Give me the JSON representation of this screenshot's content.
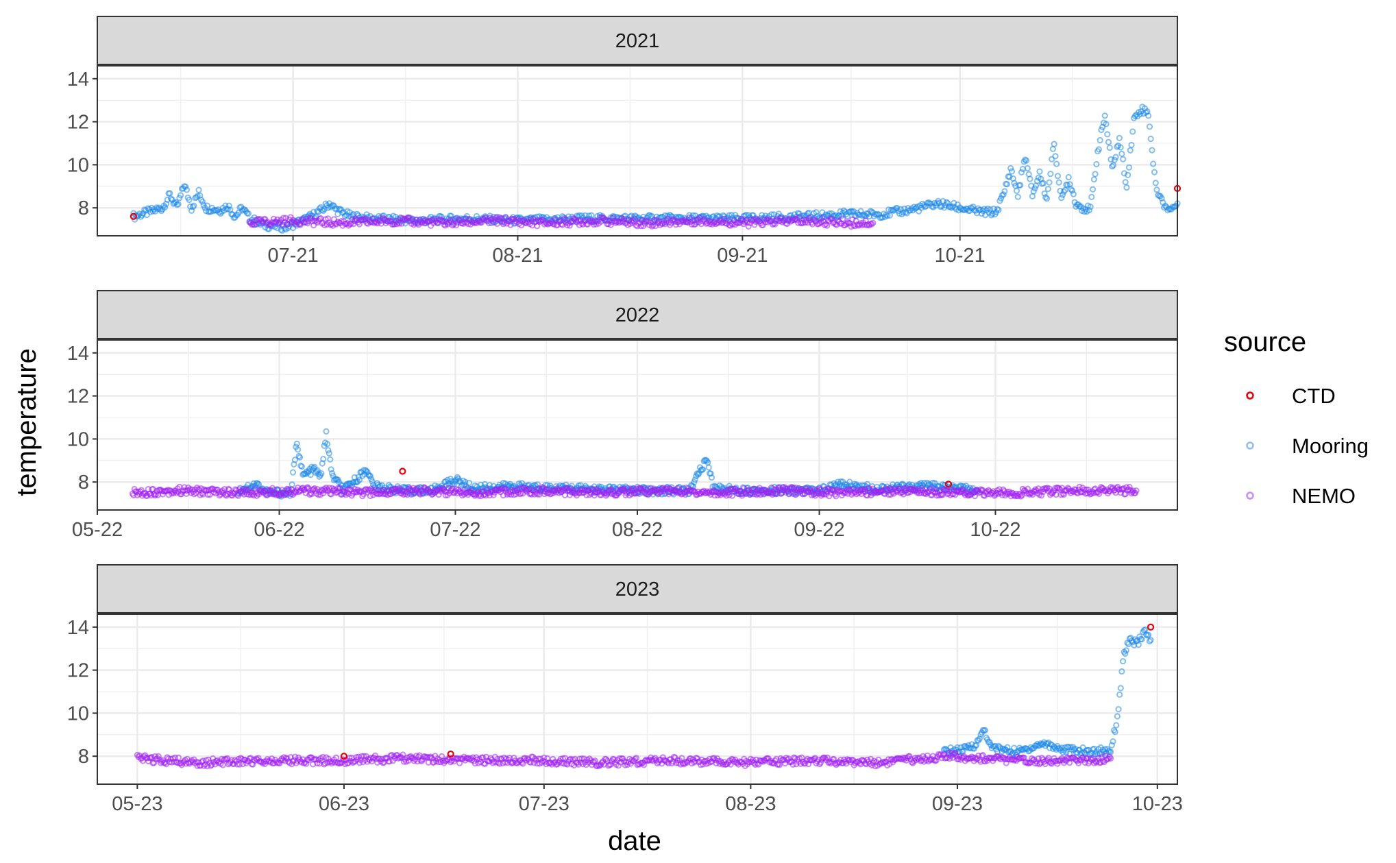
{
  "chart_data": {
    "type": "scatter",
    "xlabel": "date",
    "ylabel": "temperature",
    "legend": {
      "title": "source",
      "position": "right",
      "entries": [
        {
          "name": "CTD",
          "color": "#e8000b"
        },
        {
          "name": "Mooring",
          "color": "#1e88e5"
        },
        {
          "name": "NEMO",
          "color": "#a020f0"
        }
      ]
    },
    "grid": true,
    "panels": [
      {
        "strip": "2021",
        "xlim": [
          "2021-06-04",
          "2021-10-31"
        ],
        "ylim": [
          6.7,
          14.6
        ],
        "yticks": [
          8,
          10,
          12,
          14
        ],
        "xticks": [
          {
            "date": "2021-07-01",
            "label": "07-21"
          },
          {
            "date": "2021-08-01",
            "label": "08-21"
          },
          {
            "date": "2021-09-01",
            "label": "09-21"
          },
          {
            "date": "2021-10-01",
            "label": "10-21"
          }
        ],
        "series": [
          {
            "name": "Mooring",
            "points": [
              [
                "2021-06-09",
                7.6
              ],
              [
                "2021-06-11",
                7.8
              ],
              [
                "2021-06-13",
                8.0
              ],
              [
                "2021-06-14",
                8.6
              ],
              [
                "2021-06-15",
                8.0
              ],
              [
                "2021-06-16",
                9.1
              ],
              [
                "2021-06-17",
                8.0
              ],
              [
                "2021-06-18",
                8.7
              ],
              [
                "2021-06-19",
                8.0
              ],
              [
                "2021-06-21",
                7.9
              ],
              [
                "2021-06-22",
                8.1
              ],
              [
                "2021-06-23",
                7.6
              ],
              [
                "2021-06-24",
                8.0
              ],
              [
                "2021-06-25",
                7.5
              ],
              [
                "2021-06-27",
                7.2
              ],
              [
                "2021-06-30",
                7.1
              ],
              [
                "2021-07-03",
                7.5
              ],
              [
                "2021-07-05",
                7.9
              ],
              [
                "2021-07-06",
                8.2
              ],
              [
                "2021-07-07",
                7.9
              ],
              [
                "2021-07-09",
                7.6
              ],
              [
                "2021-07-12",
                7.5
              ],
              [
                "2021-07-18",
                7.4
              ],
              [
                "2021-07-25",
                7.5
              ],
              [
                "2021-08-01",
                7.4
              ],
              [
                "2021-08-10",
                7.5
              ],
              [
                "2021-08-20",
                7.5
              ],
              [
                "2021-09-01",
                7.5
              ],
              [
                "2021-09-10",
                7.6
              ],
              [
                "2021-09-15",
                7.7
              ],
              [
                "2021-09-20",
                7.7
              ],
              [
                "2021-09-24",
                7.9
              ],
              [
                "2021-09-28",
                8.2
              ],
              [
                "2021-10-01",
                8.0
              ],
              [
                "2021-10-04",
                7.8
              ],
              [
                "2021-10-06",
                7.8
              ],
              [
                "2021-10-07",
                8.6
              ],
              [
                "2021-10-08",
                9.8
              ],
              [
                "2021-10-09",
                8.6
              ],
              [
                "2021-10-10",
                10.4
              ],
              [
                "2021-10-11",
                8.6
              ],
              [
                "2021-10-12",
                9.6
              ],
              [
                "2021-10-13",
                8.4
              ],
              [
                "2021-10-14",
                11.0
              ],
              [
                "2021-10-15",
                8.3
              ],
              [
                "2021-10-16",
                9.4
              ],
              [
                "2021-10-17",
                8.2
              ],
              [
                "2021-10-18",
                8.0
              ],
              [
                "2021-10-19",
                7.9
              ],
              [
                "2021-10-20",
                10.6
              ],
              [
                "2021-10-21",
                12.3
              ],
              [
                "2021-10-22",
                9.8
              ],
              [
                "2021-10-23",
                11.2
              ],
              [
                "2021-10-24",
                9.0
              ],
              [
                "2021-10-25",
                12.1
              ],
              [
                "2021-10-26",
                12.6
              ],
              [
                "2021-10-27",
                12.4
              ],
              [
                "2021-10-28",
                9.0
              ],
              [
                "2021-10-29",
                8.2
              ],
              [
                "2021-10-30",
                7.9
              ],
              [
                "2021-10-31",
                8.2
              ]
            ]
          },
          {
            "name": "NEMO",
            "points": [
              [
                "2021-06-25",
                7.3
              ],
              [
                "2021-07-01",
                7.4
              ],
              [
                "2021-07-08",
                7.3
              ],
              [
                "2021-07-15",
                7.4
              ],
              [
                "2021-07-22",
                7.3
              ],
              [
                "2021-07-29",
                7.4
              ],
              [
                "2021-08-05",
                7.3
              ],
              [
                "2021-08-12",
                7.4
              ],
              [
                "2021-08-19",
                7.3
              ],
              [
                "2021-08-26",
                7.4
              ],
              [
                "2021-09-02",
                7.3
              ],
              [
                "2021-09-09",
                7.4
              ],
              [
                "2021-09-16",
                7.3
              ],
              [
                "2021-09-19",
                7.3
              ]
            ]
          },
          {
            "name": "CTD",
            "points": [
              [
                "2021-06-09",
                7.6
              ],
              [
                "2021-10-31",
                8.9
              ]
            ]
          }
        ]
      },
      {
        "strip": "2022",
        "xlim": [
          "2022-05-01",
          "2022-11-01"
        ],
        "ylim": [
          6.7,
          14.6
        ],
        "yticks": [
          8,
          10,
          12,
          14
        ],
        "xticks": [
          {
            "date": "2022-05-01",
            "label": "05-22"
          },
          {
            "date": "2022-06-01",
            "label": "06-22"
          },
          {
            "date": "2022-07-01",
            "label": "07-22"
          },
          {
            "date": "2022-08-01",
            "label": "08-22"
          },
          {
            "date": "2022-09-01",
            "label": "09-22"
          },
          {
            "date": "2022-10-01",
            "label": "10-22"
          }
        ],
        "series": [
          {
            "name": "Mooring",
            "points": [
              [
                "2022-05-25",
                7.6
              ],
              [
                "2022-05-28",
                7.9
              ],
              [
                "2022-05-30",
                7.5
              ],
              [
                "2022-06-03",
                7.5
              ],
              [
                "2022-06-04",
                9.9
              ],
              [
                "2022-06-05",
                8.3
              ],
              [
                "2022-06-07",
                8.6
              ],
              [
                "2022-06-08",
                8.2
              ],
              [
                "2022-06-09",
                10.2
              ],
              [
                "2022-06-10",
                8.3
              ],
              [
                "2022-06-12",
                7.6
              ],
              [
                "2022-06-16",
                8.6
              ],
              [
                "2022-06-17",
                7.8
              ],
              [
                "2022-06-22",
                7.6
              ],
              [
                "2022-06-27",
                7.6
              ],
              [
                "2022-07-01",
                8.1
              ],
              [
                "2022-07-04",
                7.7
              ],
              [
                "2022-07-10",
                7.8
              ],
              [
                "2022-07-20",
                7.7
              ],
              [
                "2022-08-01",
                7.6
              ],
              [
                "2022-08-10",
                7.6
              ],
              [
                "2022-08-12",
                8.7
              ],
              [
                "2022-08-13",
                9.0
              ],
              [
                "2022-08-14",
                7.7
              ],
              [
                "2022-08-20",
                7.6
              ],
              [
                "2022-09-01",
                7.6
              ],
              [
                "2022-09-05",
                7.9
              ],
              [
                "2022-09-10",
                7.7
              ],
              [
                "2022-09-20",
                7.8
              ],
              [
                "2022-09-28",
                7.6
              ]
            ]
          },
          {
            "name": "NEMO",
            "points": [
              [
                "2022-05-07",
                7.5
              ],
              [
                "2022-05-15",
                7.6
              ],
              [
                "2022-05-25",
                7.5
              ],
              [
                "2022-06-05",
                7.6
              ],
              [
                "2022-06-15",
                7.5
              ],
              [
                "2022-06-25",
                7.6
              ],
              [
                "2022-07-05",
                7.5
              ],
              [
                "2022-07-15",
                7.6
              ],
              [
                "2022-07-25",
                7.5
              ],
              [
                "2022-08-05",
                7.6
              ],
              [
                "2022-08-15",
                7.5
              ],
              [
                "2022-08-25",
                7.6
              ],
              [
                "2022-09-05",
                7.5
              ],
              [
                "2022-09-15",
                7.6
              ],
              [
                "2022-09-25",
                7.5
              ],
              [
                "2022-10-05",
                7.5
              ],
              [
                "2022-10-15",
                7.6
              ],
              [
                "2022-10-25",
                7.6
              ]
            ]
          },
          {
            "name": "CTD",
            "points": [
              [
                "2022-06-22",
                8.5
              ],
              [
                "2022-09-23",
                7.9
              ]
            ]
          }
        ]
      },
      {
        "strip": "2023",
        "xlim": [
          "2023-04-25",
          "2023-10-04"
        ],
        "ylim": [
          6.7,
          14.6
        ],
        "yticks": [
          8,
          10,
          12,
          14
        ],
        "xticks": [
          {
            "date": "2023-05-01",
            "label": "05-23"
          },
          {
            "date": "2023-06-01",
            "label": "06-23"
          },
          {
            "date": "2023-07-01",
            "label": "07-23"
          },
          {
            "date": "2023-08-01",
            "label": "08-23"
          },
          {
            "date": "2023-09-01",
            "label": "09-23"
          },
          {
            "date": "2023-10-01",
            "label": "10-23"
          }
        ],
        "series": [
          {
            "name": "Mooring",
            "points": [
              [
                "2023-08-30",
                8.2
              ],
              [
                "2023-09-02",
                8.3
              ],
              [
                "2023-09-04",
                8.6
              ],
              [
                "2023-09-05",
                9.3
              ],
              [
                "2023-09-06",
                8.4
              ],
              [
                "2023-09-10",
                8.2
              ],
              [
                "2023-09-14",
                8.6
              ],
              [
                "2023-09-17",
                8.3
              ],
              [
                "2023-09-21",
                8.2
              ],
              [
                "2023-09-24",
                8.3
              ],
              [
                "2023-09-25",
                9.8
              ],
              [
                "2023-09-26",
                12.8
              ],
              [
                "2023-09-27",
                13.4
              ],
              [
                "2023-09-28",
                13.2
              ],
              [
                "2023-09-29",
                13.8
              ],
              [
                "2023-09-30",
                13.4
              ]
            ]
          },
          {
            "name": "NEMO",
            "points": [
              [
                "2023-05-01",
                7.9
              ],
              [
                "2023-05-10",
                7.7
              ],
              [
                "2023-05-20",
                7.8
              ],
              [
                "2023-05-31",
                7.8
              ],
              [
                "2023-06-10",
                7.9
              ],
              [
                "2023-06-20",
                7.8
              ],
              [
                "2023-06-30",
                7.8
              ],
              [
                "2023-07-10",
                7.7
              ],
              [
                "2023-07-20",
                7.8
              ],
              [
                "2023-07-31",
                7.7
              ],
              [
                "2023-08-10",
                7.8
              ],
              [
                "2023-08-20",
                7.7
              ],
              [
                "2023-08-31",
                8.0
              ],
              [
                "2023-09-10",
                7.8
              ],
              [
                "2023-09-20",
                7.8
              ],
              [
                "2023-09-24",
                7.9
              ]
            ]
          },
          {
            "name": "CTD",
            "points": [
              [
                "2023-06-01",
                8.0
              ],
              [
                "2023-06-17",
                8.1
              ],
              [
                "2023-09-30",
                14.0
              ]
            ]
          }
        ]
      }
    ]
  }
}
